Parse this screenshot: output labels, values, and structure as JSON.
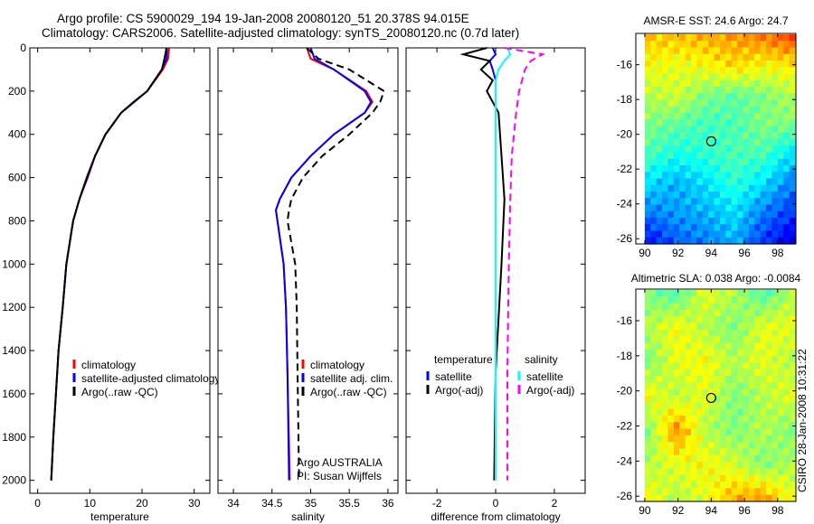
{
  "title_line1": "Argo profile: CS 5900029_194 19-Jan-2008 20080120_51 20.378S 94.015E",
  "title_line2": "Climatology: CARS2006. Satellite-adjusted climatology: synTS_20080120.nc (0.7d later)",
  "side_label": "CSIRO 28-Jan-2008 10:31:22",
  "colors": {
    "red": "#ff0000",
    "blue": "#0000ff",
    "black": "#000000",
    "cyan": "#00ffff",
    "magenta": "#ff00ff"
  },
  "chart_data": [
    {
      "type": "line",
      "xlabel": "temperature",
      "ylabel": "",
      "xlim": [
        -1.5,
        33
      ],
      "ylim": [
        0,
        2060
      ],
      "xticks": [
        0,
        10,
        20,
        30
      ],
      "yticks": [
        0,
        200,
        400,
        600,
        800,
        1000,
        1200,
        1400,
        1600,
        1800,
        2000
      ],
      "y_reversed": true,
      "depth": [
        0,
        50,
        100,
        200,
        250,
        300,
        400,
        500,
        600,
        700,
        800,
        1000,
        1200,
        1400,
        1600,
        1800,
        2000
      ],
      "series": [
        {
          "name": "climatology",
          "color": "#ff0000",
          "dash": false,
          "values": [
            25.2,
            25.0,
            24.0,
            21.0,
            18.5,
            16.0,
            13.0,
            11.0,
            9.6,
            8.0,
            6.8,
            5.5,
            4.8,
            4.0,
            3.5,
            3.0,
            2.6
          ]
        },
        {
          "name": "satellite-adjusted climatology",
          "color": "#0000ff",
          "dash": false,
          "values": [
            24.8,
            24.7,
            23.8,
            21.0,
            18.5,
            16.0,
            13.0,
            11.0,
            9.5,
            8.0,
            6.8,
            5.5,
            4.8,
            4.0,
            3.5,
            3.0,
            2.6
          ]
        },
        {
          "name": "Argo(..raw -QC)",
          "color": "#000000",
          "dash": false,
          "values": [
            24.7,
            24.3,
            23.8,
            21.0,
            18.4,
            16.0,
            13.0,
            11.0,
            9.4,
            8.0,
            6.8,
            5.5,
            4.8,
            4.0,
            3.5,
            3.0,
            2.6
          ]
        }
      ],
      "legend": [
        "climatology",
        "satellite-adjusted climatology",
        "Argo(..raw -QC)"
      ]
    },
    {
      "type": "line",
      "xlabel": "salinity",
      "xlim": [
        33.8,
        36.13
      ],
      "ylim": [
        0,
        2060
      ],
      "xticks": [
        34,
        34.5,
        35,
        35.5,
        36
      ],
      "y_reversed": true,
      "depth": [
        0,
        50,
        100,
        200,
        250,
        300,
        400,
        500,
        600,
        700,
        750,
        800,
        1000,
        1200,
        1500,
        2000
      ],
      "series": [
        {
          "name": "climatology",
          "color": "#ff0000",
          "dash": false,
          "values": [
            34.95,
            35.0,
            35.3,
            35.72,
            35.8,
            35.7,
            35.3,
            35.0,
            34.75,
            34.6,
            34.55,
            34.57,
            34.65,
            34.68,
            34.7,
            34.73
          ]
        },
        {
          "name": "satellite adj. clim.",
          "color": "#0000ff",
          "dash": false,
          "values": [
            35.0,
            35.05,
            35.3,
            35.7,
            35.78,
            35.7,
            35.3,
            35.0,
            34.75,
            34.6,
            34.55,
            34.57,
            34.65,
            34.68,
            34.7,
            34.72
          ]
        },
        {
          "name": "Argo(..raw -QC)",
          "color": "#000000",
          "dash": true,
          "values": [
            34.95,
            35.1,
            35.5,
            35.95,
            35.9,
            35.8,
            35.5,
            35.15,
            34.9,
            34.75,
            34.72,
            34.7,
            34.8,
            34.82,
            34.83,
            34.85
          ]
        }
      ],
      "legend": [
        "climatology",
        "satellite adj. clim.",
        "Argo(..raw -QC)"
      ],
      "annotations": [
        "Argo AUSTRALIA",
        "PI: Susan Wijffels"
      ]
    },
    {
      "type": "line",
      "xlabel": "difference from climatology",
      "xlim": [
        -3.05,
        3.05
      ],
      "ylim": [
        0,
        2060
      ],
      "xticks": [
        -2,
        0,
        2
      ],
      "y_reversed": true,
      "depth": [
        0,
        30,
        60,
        100,
        150,
        200,
        300,
        500,
        700,
        1000,
        1500,
        2000
      ],
      "series": [
        {
          "name": "temperature satellite",
          "color": "#0000ff",
          "dash": false,
          "values": [
            -0.1,
            0.0,
            -0.2,
            -0.1,
            0.0,
            0.0,
            0.0,
            0.0,
            0.0,
            0.0,
            0.0,
            0.0
          ]
        },
        {
          "name": "temperature Argo(-adj)",
          "color": "#000000",
          "dash": false,
          "values": [
            -0.3,
            -1.1,
            -0.2,
            -0.5,
            -0.1,
            -0.3,
            0.1,
            0.2,
            0.3,
            0.2,
            0.0,
            -0.05
          ]
        },
        {
          "name": "salinity satellite",
          "color": "#00ffff",
          "dash": false,
          "values": [
            0.4,
            0.5,
            0.3,
            0.1,
            0.0,
            0.0,
            0.0,
            0.0,
            0.0,
            0.0,
            0.0,
            0.0
          ]
        },
        {
          "name": "salinity Argo(-adj)",
          "color": "#ff00ff",
          "dash": true,
          "values": [
            0.3,
            1.6,
            1.2,
            1.0,
            0.9,
            0.8,
            0.7,
            0.55,
            0.5,
            0.45,
            0.4,
            0.4
          ]
        }
      ],
      "legend_headers": [
        "temperature",
        "salinity"
      ],
      "legend": [
        "satellite",
        "Argo(-adj)",
        "satellite",
        "Argo(-adj)"
      ]
    },
    {
      "type": "heatmap",
      "title": "AMSR-E SST: 24.6 Argo: 24.7",
      "xlim": [
        89.46,
        99.1
      ],
      "ylim": [
        -14.2,
        -26.3
      ],
      "xticks": [
        90,
        92,
        94,
        96,
        98
      ],
      "yticks": [
        -16,
        -18,
        -20,
        -22,
        -24,
        -26
      ],
      "data_lon_start": 90.0,
      "marker": {
        "lon": 94.0,
        "lat": -20.4
      },
      "grid_normalized": [
        [
          0.68,
          0.68,
          0.7,
          0.72,
          0.75,
          0.8
        ],
        [
          0.62,
          0.6,
          0.62,
          0.66,
          0.62,
          0.64
        ],
        [
          0.55,
          0.58,
          0.5,
          0.47,
          0.5,
          0.55
        ],
        [
          0.5,
          0.47,
          0.44,
          0.45,
          0.5,
          0.5
        ],
        [
          0.45,
          0.4,
          0.42,
          0.45,
          0.45,
          0.35
        ],
        [
          0.35,
          0.3,
          0.35,
          0.42,
          0.35,
          0.25
        ],
        [
          0.25,
          0.28,
          0.3,
          0.35,
          0.25,
          0.18
        ],
        [
          0.14,
          0.22,
          0.25,
          0.3,
          0.18,
          0.1
        ]
      ]
    },
    {
      "type": "heatmap",
      "title": "Altimetric SLA: 0.038 Argo: -0.0084",
      "xlim": [
        89.46,
        99.1
      ],
      "ylim": [
        -14.2,
        -26.3
      ],
      "xticks": [
        90,
        92,
        94,
        96,
        98
      ],
      "yticks": [
        -16,
        -18,
        -20,
        -22,
        -24,
        -26
      ],
      "data_lon_start": 90.0,
      "marker": {
        "lon": 94.0,
        "lat": -20.4
      },
      "grid_normalized": [
        [
          0.5,
          0.45,
          0.6,
          0.55,
          0.45,
          0.55
        ],
        [
          0.55,
          0.62,
          0.55,
          0.5,
          0.6,
          0.6
        ],
        [
          0.5,
          0.6,
          0.62,
          0.55,
          0.6,
          0.55
        ],
        [
          0.62,
          0.55,
          0.6,
          0.5,
          0.55,
          0.6
        ],
        [
          0.5,
          0.74,
          0.55,
          0.5,
          0.55,
          0.5
        ],
        [
          0.55,
          0.6,
          0.62,
          0.58,
          0.5,
          0.55
        ],
        [
          0.62,
          0.55,
          0.6,
          0.7,
          0.72,
          0.6
        ]
      ]
    }
  ]
}
